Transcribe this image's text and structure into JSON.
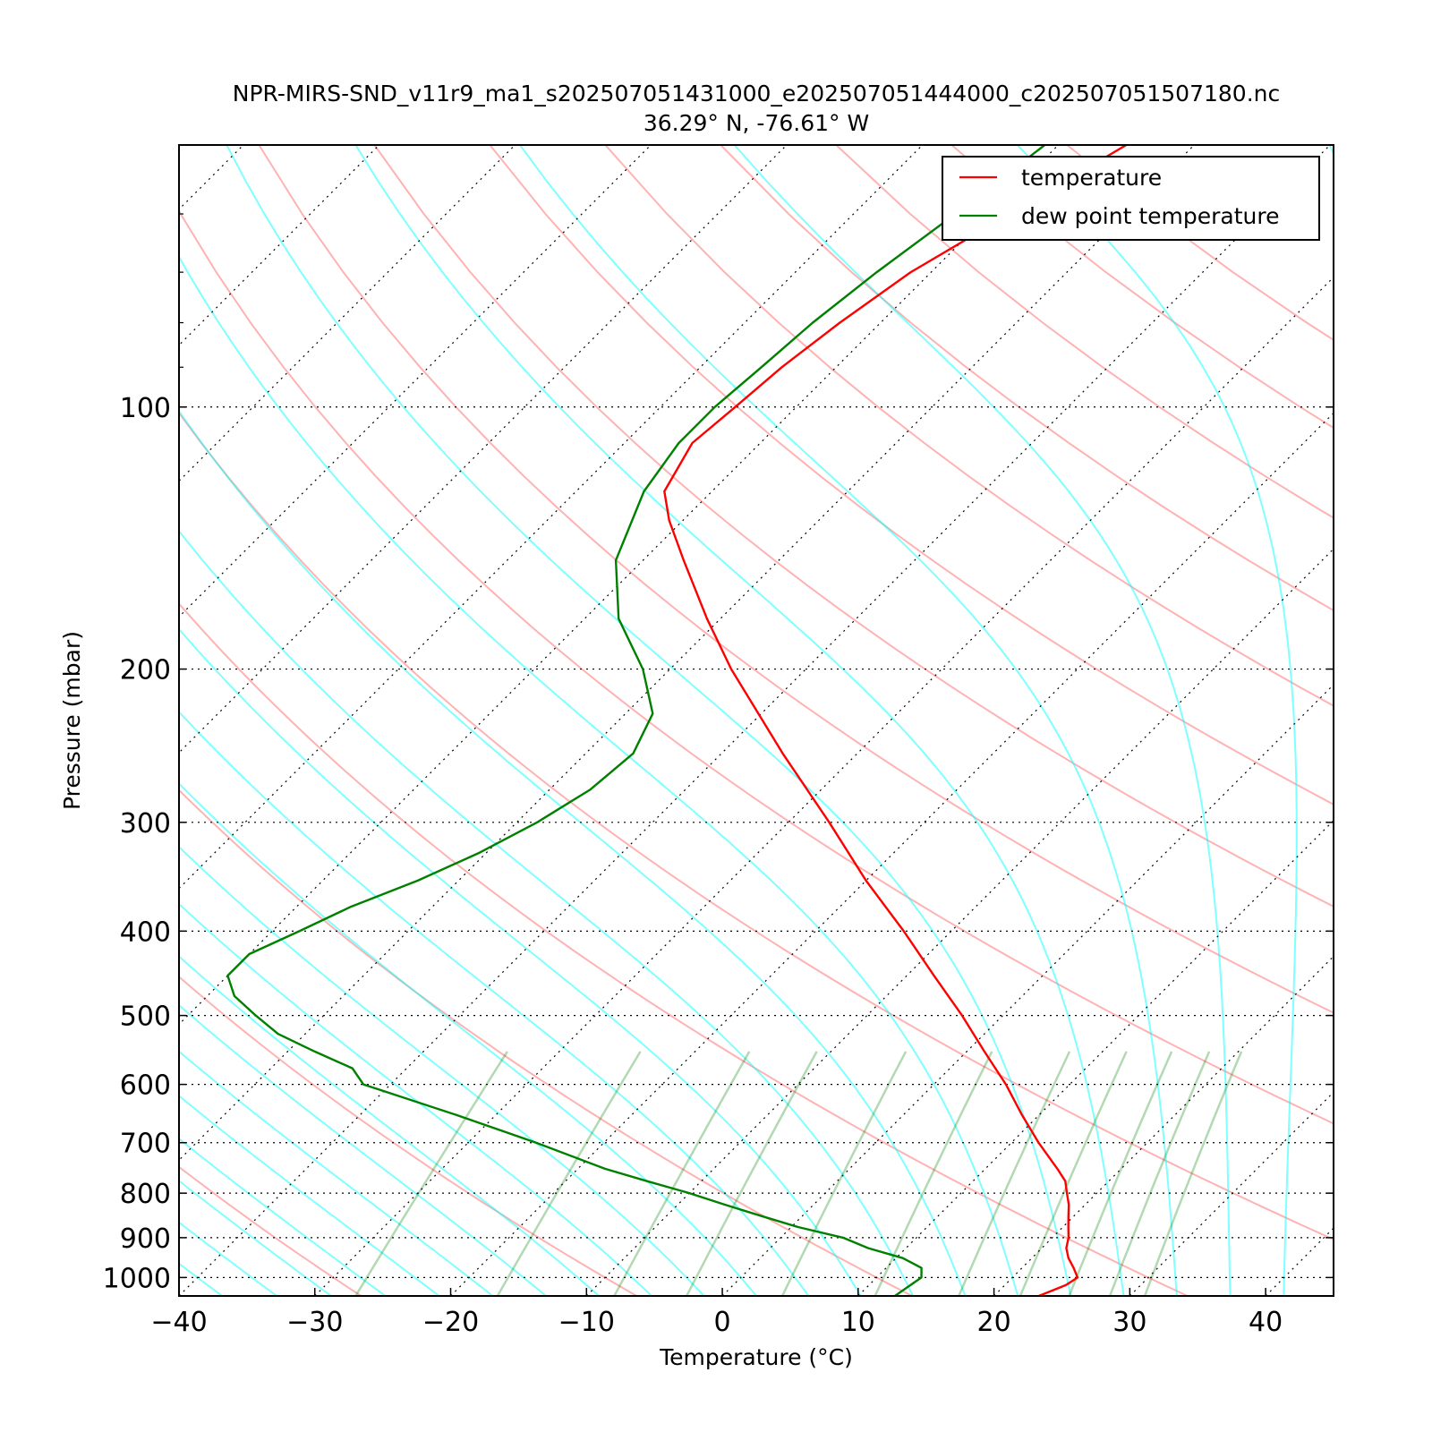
{
  "chart_data": {
    "type": "line",
    "subtype": "skew-T log-P sounding",
    "title": "NPR-MIRS-SND_v11r9_ma1_s202507051431000_e202507051444000_c202507051507180.nc",
    "subtitle": "36.29° N, -76.61° W",
    "xlabel": "Temperature (°C)",
    "ylabel": "Pressure (mbar)",
    "xlim": [
      -40,
      45
    ],
    "ylim": [
      1050,
      50
    ],
    "y_scale": "log",
    "x_ticks": [
      "−40",
      "−30",
      "−20",
      "−10",
      "0",
      "10",
      "20",
      "30",
      "40"
    ],
    "y_ticks": [
      "100",
      "200",
      "300",
      "400",
      "500",
      "600",
      "700",
      "800",
      "900",
      "1000"
    ],
    "legend_position": "top-right",
    "series": [
      {
        "name": "temperature",
        "color": "#ff0000",
        "pressure": [
          1050,
          1020,
          1000,
          975,
          950,
          925,
          900,
          875,
          850,
          825,
          800,
          775,
          750,
          700,
          650,
          600,
          550,
          500,
          450,
          400,
          350,
          300,
          250,
          200,
          175,
          150,
          135,
          125,
          110,
          100,
          90,
          80,
          70,
          60,
          50
        ],
        "values": [
          23.3,
          24.5,
          24.8,
          23.8,
          22.7,
          21.8,
          21.2,
          20.4,
          19.6,
          18.8,
          17.8,
          16.8,
          15.3,
          12.0,
          8.7,
          5.3,
          1.3,
          -3.0,
          -8.0,
          -13.5,
          -20.0,
          -27.0,
          -35.5,
          -45.5,
          -51.0,
          -57.0,
          -61.0,
          -63.5,
          -65.0,
          -64.5,
          -64.0,
          -63.0,
          -61.5,
          -58.5,
          -55.0
        ]
      },
      {
        "name": "dew point temperature",
        "color": "#008000",
        "pressure": [
          1050,
          1000,
          975,
          950,
          925,
          900,
          875,
          850,
          825,
          800,
          775,
          750,
          700,
          650,
          600,
          575,
          550,
          525,
          500,
          475,
          450,
          425,
          400,
          375,
          350,
          325,
          300,
          275,
          250,
          225,
          200,
          175,
          150,
          125,
          110,
          100,
          90,
          80,
          70,
          60,
          50
        ],
        "values": [
          12.7,
          13.3,
          12.6,
          10.5,
          7.2,
          4.6,
          0.5,
          -3.0,
          -6.5,
          -10.0,
          -14.0,
          -18.0,
          -25.0,
          -33.0,
          -42.0,
          -44.0,
          -48.0,
          -52.0,
          -55.0,
          -58.0,
          -60.0,
          -60.0,
          -58.0,
          -56.0,
          -53.0,
          -50.5,
          -48.5,
          -47.0,
          -46.5,
          -48.0,
          -52.0,
          -57.5,
          -62.0,
          -65.0,
          -66.0,
          -66.0,
          -65.5,
          -65.0,
          -64.0,
          -62.5,
          -61.0
        ]
      }
    ],
    "reference_lines": {
      "dry_adiabats_color": "#ff0000",
      "moist_adiabats_color": "#00ffff",
      "mixing_ratio_color": "#008000",
      "isotherm_color": "#000000",
      "isobar_color": "#000000"
    }
  }
}
